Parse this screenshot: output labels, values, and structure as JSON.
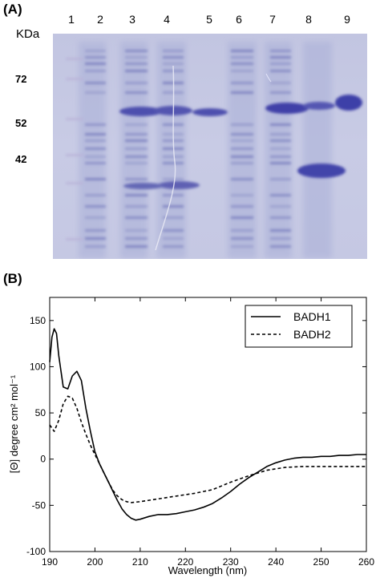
{
  "panel_a": {
    "label": "(A)",
    "lane_numbers": [
      "1",
      "2",
      "3",
      "4",
      "5",
      "6",
      "7",
      "8",
      "9"
    ],
    "unit": "KDa",
    "markers": [
      "72",
      "52",
      "42"
    ]
  },
  "panel_b": {
    "label": "(B)"
  },
  "chart_data": {
    "type": "line",
    "xlabel": "Wavelength (nm)",
    "ylabel": "[Θ] degree cm² mol⁻¹",
    "xlim": [
      190,
      260
    ],
    "ylim": [
      -100,
      175
    ],
    "xticks": [
      "190",
      "200",
      "210",
      "220",
      "230",
      "240",
      "250",
      "260"
    ],
    "yticks": [
      "-100",
      "-50",
      "0",
      "50",
      "100",
      "150"
    ],
    "legend_position": "top-right",
    "series": [
      {
        "name": "BADH1",
        "style": "solid",
        "x": [
          190,
          190.5,
          191,
          191.5,
          192,
          193,
          194,
          195,
          196,
          197,
          198,
          199,
          200,
          201,
          202,
          203,
          204,
          205,
          206,
          207,
          208,
          209,
          210,
          212,
          214,
          216,
          218,
          220,
          222,
          224,
          226,
          228,
          230,
          232,
          234,
          236,
          238,
          240,
          242,
          244,
          246,
          248,
          250,
          252,
          254,
          256,
          258,
          260
        ],
        "y": [
          105,
          132,
          141,
          136,
          112,
          78,
          76,
          90,
          95,
          85,
          55,
          30,
          8,
          -5,
          -15,
          -25,
          -35,
          -45,
          -54,
          -60,
          -64,
          -66,
          -65,
          -62,
          -60,
          -60,
          -59,
          -57,
          -55,
          -52,
          -48,
          -42,
          -35,
          -27,
          -20,
          -14,
          -8,
          -4,
          -1,
          1,
          2,
          2,
          3,
          3,
          4,
          4,
          5,
          5
        ]
      },
      {
        "name": "BADH2",
        "style": "dashed",
        "x": [
          190,
          191,
          192,
          193,
          194,
          195,
          196,
          197,
          198,
          199,
          200,
          201,
          202,
          203,
          204,
          205,
          206,
          207,
          208,
          210,
          214,
          218,
          222,
          226,
          230,
          234,
          238,
          242,
          246,
          250,
          255,
          260
        ],
        "y": [
          37,
          30,
          42,
          60,
          68,
          66,
          55,
          40,
          27,
          15,
          5,
          -5,
          -15,
          -25,
          -34,
          -40,
          -44,
          -46,
          -47,
          -46,
          -43,
          -40,
          -37,
          -33,
          -25,
          -18,
          -12,
          -9,
          -8,
          -8,
          -8,
          -8
        ]
      }
    ]
  }
}
